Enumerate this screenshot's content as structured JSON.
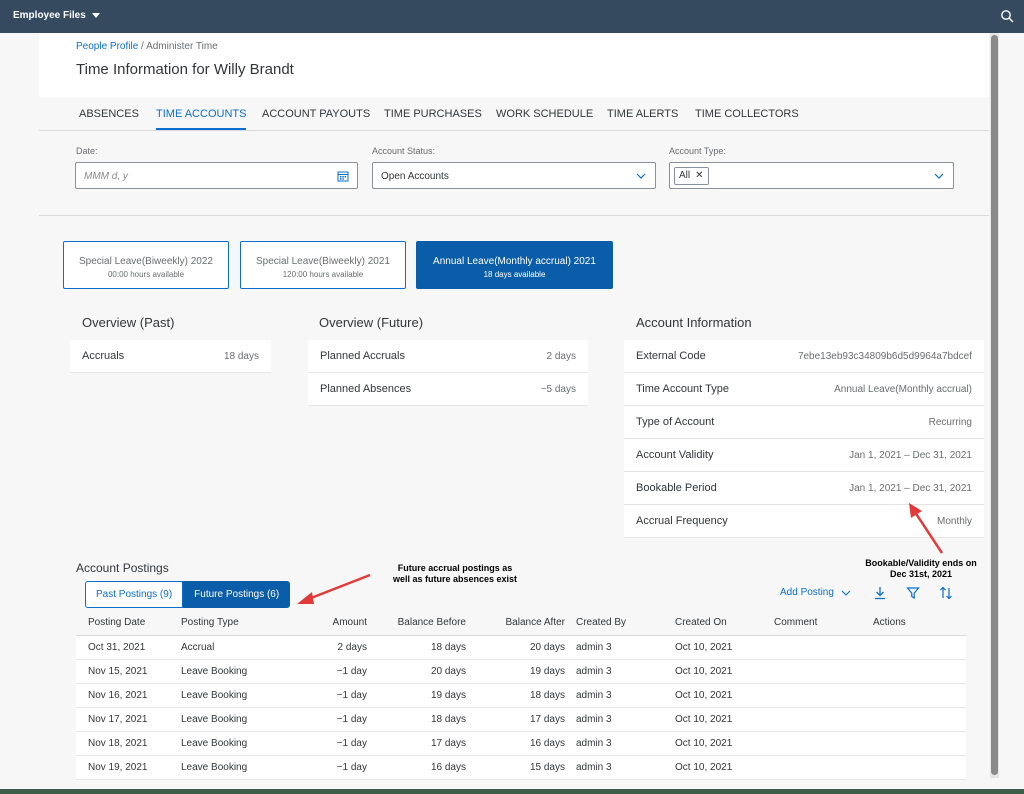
{
  "topbar": {
    "menu_label": "Employee Files"
  },
  "header": {
    "breadcrumb_link": "People Profile",
    "breadcrumb_sep": " / ",
    "breadcrumb_current": "Administer Time",
    "title": "Time Information for Willy Brandt"
  },
  "tabs": [
    {
      "label": "ABSENCES"
    },
    {
      "label": "TIME ACCOUNTS"
    },
    {
      "label": "ACCOUNT PAYOUTS"
    },
    {
      "label": "TIME PURCHASES"
    },
    {
      "label": "WORK SCHEDULE"
    },
    {
      "label": "TIME ALERTS"
    },
    {
      "label": "TIME COLLECTORS"
    }
  ],
  "filters": {
    "date_label": "Date:",
    "date_placeholder": "MMM d, y",
    "status_label": "Account Status:",
    "status_value": "Open Accounts",
    "type_label": "Account Type:",
    "type_token": "All"
  },
  "tiles": [
    {
      "title": "Special Leave(Biweekly) 2022",
      "sub": "00:00 hours available"
    },
    {
      "title": "Special Leave(Biweekly) 2021",
      "sub": "120:00 hours available"
    },
    {
      "title": "Annual Leave(Monthly accrual) 2021",
      "sub": "18 days available"
    }
  ],
  "overview_past": {
    "title": "Overview (Past)",
    "rows": [
      {
        "k": "Accruals",
        "v": "18 days"
      }
    ]
  },
  "overview_future": {
    "title": "Overview (Future)",
    "rows": [
      {
        "k": "Planned Accruals",
        "v": "2 days"
      },
      {
        "k": "Planned Absences",
        "v": "−5 days"
      }
    ]
  },
  "account_info": {
    "title": "Account Information",
    "rows": [
      {
        "k": "External Code",
        "v": "7ebe13eb93c34809b6d5d9964a7bdcef"
      },
      {
        "k": "Time Account Type",
        "v": "Annual Leave(Monthly accrual)"
      },
      {
        "k": "Type of Account",
        "v": "Recurring"
      },
      {
        "k": "Account Validity",
        "v": "Jan 1, 2021 – Dec 31, 2021"
      },
      {
        "k": "Bookable Period",
        "v": "Jan 1, 2021 – Dec 31, 2021"
      },
      {
        "k": "Accrual Frequency",
        "v": "Monthly"
      }
    ]
  },
  "postings": {
    "title": "Account Postings",
    "past_btn": "Past Postings (9)",
    "future_btn": "Future Postings (6)",
    "add_posting": "Add Posting",
    "columns": [
      "Posting Date",
      "Posting Type",
      "Amount",
      "Balance Before",
      "Balance After",
      "Created By",
      "Created On",
      "Comment",
      "Actions"
    ],
    "rows": [
      [
        "Oct 31, 2021",
        "Accrual",
        "2 days",
        "18 days",
        "20 days",
        "admin 3",
        "Oct 10, 2021"
      ],
      [
        "Nov 15, 2021",
        "Leave Booking",
        "−1 day",
        "20 days",
        "19 days",
        "admin 3",
        "Oct 10, 2021"
      ],
      [
        "Nov 16, 2021",
        "Leave Booking",
        "−1 day",
        "19 days",
        "18 days",
        "admin 3",
        "Oct 10, 2021"
      ],
      [
        "Nov 17, 2021",
        "Leave Booking",
        "−1 day",
        "18 days",
        "17 days",
        "admin 3",
        "Oct 10, 2021"
      ],
      [
        "Nov 18, 2021",
        "Leave Booking",
        "−1 day",
        "17 days",
        "16 days",
        "admin 3",
        "Oct 10, 2021"
      ],
      [
        "Nov 19, 2021",
        "Leave Booking",
        "−1 day",
        "16 days",
        "15 days",
        "admin 3",
        "Oct 10, 2021"
      ]
    ]
  },
  "annotations": {
    "future_line1": "Future accrual postings as",
    "future_line2": "well as future absences exist",
    "validity_line1": "Bookable/Validity ends on",
    "validity_line2": "Dec 31st, 2021"
  },
  "colors": {
    "accent": "#0a6ed1",
    "shell": "#354a5f",
    "selected_tile": "#0a5da8",
    "annotation_arrow": "#e03a3a"
  }
}
